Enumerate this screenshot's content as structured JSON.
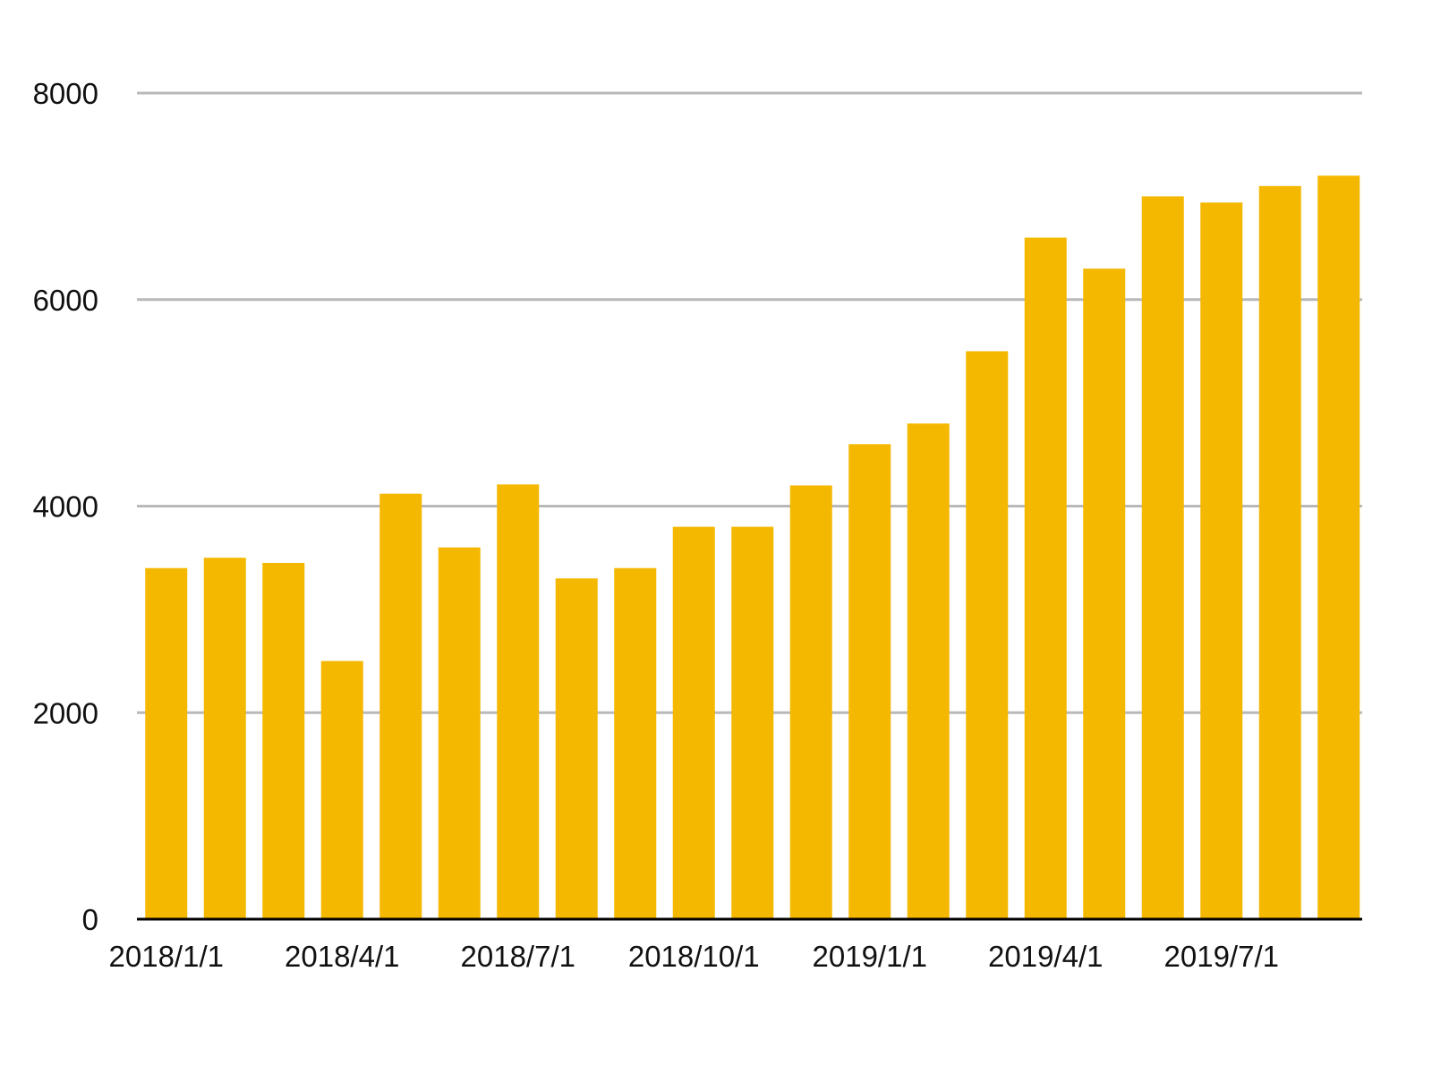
{
  "colors": {
    "bar": "#f5b800",
    "grid": "#b9b9b9",
    "axis": "#000000",
    "text": "#111111",
    "background": "#ffffff"
  },
  "chart_data": {
    "type": "bar",
    "title": "",
    "xlabel": "",
    "ylabel": "",
    "ylim": [
      0,
      8000
    ],
    "yticks": [
      0,
      2000,
      4000,
      6000,
      8000
    ],
    "grid": true,
    "legend": "none",
    "categories": [
      "2018/1/1",
      "2018/2/1",
      "2018/3/1",
      "2018/4/1",
      "2018/5/1",
      "2018/6/1",
      "2018/7/1",
      "2018/8/1",
      "2018/9/1",
      "2018/10/1",
      "2018/11/1",
      "2018/12/1",
      "2019/1/1",
      "2019/2/1",
      "2019/3/1",
      "2019/4/1",
      "2019/5/1",
      "2019/6/1",
      "2019/7/1",
      "2019/8/1",
      "2019/9/1"
    ],
    "xtick_labels": [
      {
        "index": 0,
        "label": "2018/1/1"
      },
      {
        "index": 3,
        "label": "2018/4/1"
      },
      {
        "index": 6,
        "label": "2018/7/1"
      },
      {
        "index": 9,
        "label": "2018/10/1"
      },
      {
        "index": 12,
        "label": "2019/1/1"
      },
      {
        "index": 15,
        "label": "2019/4/1"
      },
      {
        "index": 18,
        "label": "2019/7/1"
      }
    ],
    "values": [
      3400,
      3500,
      3450,
      2500,
      4120,
      3600,
      4210,
      3300,
      3400,
      3800,
      3800,
      4200,
      4600,
      4800,
      5500,
      6600,
      6300,
      7000,
      6940,
      7100,
      7200
    ]
  }
}
